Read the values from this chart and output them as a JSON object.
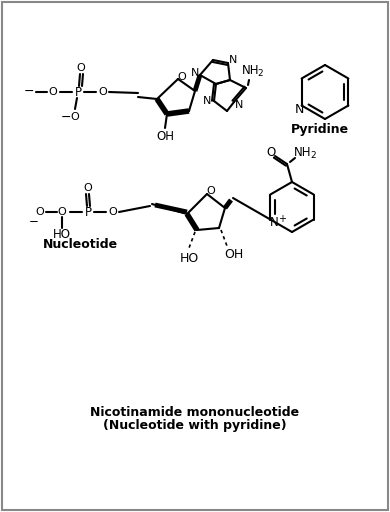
{
  "background_color": "#ffffff",
  "border_color": "#888888",
  "title1": "Nicotinamide mononucleotide",
  "title2": "(Nucleotide with pyridine)",
  "label_nucleotide": "Nucleotide",
  "label_pyridine": "Pyridine",
  "figsize": [
    3.9,
    5.12
  ],
  "dpi": 100,
  "lw": 1.5
}
